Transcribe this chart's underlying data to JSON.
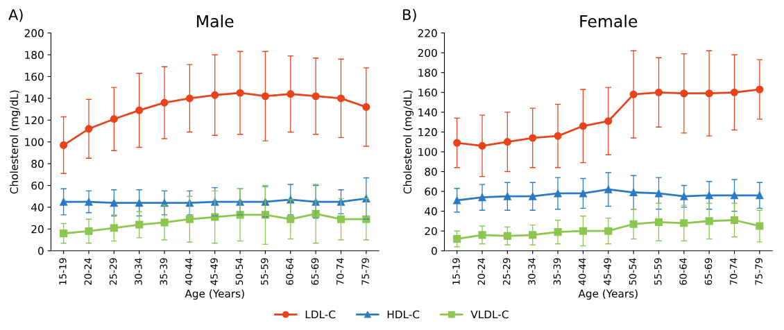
{
  "chart_data": [
    {
      "type": "line",
      "title": "Male",
      "xlabel": "Age (Years)",
      "ylabel": "Cholesterol (mg/dL)",
      "annotations": [
        "A)"
      ],
      "categories": [
        "15-19",
        "20-24",
        "25-29",
        "30-34",
        "35-39",
        "40-44",
        "45-49",
        "50-54",
        "55-59",
        "60-64",
        "65-69",
        "70-74",
        "75-79"
      ],
      "ylim": [
        0,
        200
      ],
      "yticks": [
        0,
        20,
        40,
        60,
        80,
        100,
        120,
        140,
        160,
        180,
        200
      ],
      "grid": false,
      "legend": "bottom",
      "series": [
        {
          "name": "LDL-C",
          "color": "#e8431b",
          "marker": "circle",
          "values": [
            97,
            112,
            121,
            129,
            136,
            140,
            143,
            145,
            142,
            144,
            142,
            140,
            132
          ],
          "errors": [
            26,
            27,
            29,
            34,
            33,
            31,
            37,
            38,
            41,
            35,
            35,
            36,
            36
          ]
        },
        {
          "name": "HDL-C",
          "color": "#2a7bc4",
          "marker": "triangle",
          "values": [
            45,
            45,
            44,
            44,
            44,
            44,
            45,
            45,
            45,
            47,
            45,
            45,
            48
          ],
          "errors": [
            12,
            10,
            12,
            12,
            11,
            11,
            13,
            12,
            14,
            14,
            15,
            11,
            19
          ]
        },
        {
          "name": "VLDL-C",
          "color": "#8cc64f",
          "marker": "square",
          "values": [
            16,
            18,
            21,
            24,
            26,
            29,
            31,
            33,
            33,
            29,
            34,
            29,
            29
          ],
          "errors": [
            9,
            11,
            12,
            12,
            16,
            21,
            24,
            24,
            27,
            18,
            27,
            19,
            19
          ]
        }
      ]
    },
    {
      "type": "line",
      "title": "Female",
      "xlabel": "Age (Years)",
      "ylabel": "Cholesterol (mg/dL)",
      "annotations": [
        "B)"
      ],
      "categories": [
        "15-19",
        "20-24",
        "25-29",
        "30-34",
        "35-39",
        "40-44",
        "45-49",
        "50-54",
        "55-59",
        "60-64",
        "65-69",
        "70-74",
        "75-79"
      ],
      "ylim": [
        0,
        220
      ],
      "yticks": [
        0,
        20,
        40,
        60,
        80,
        100,
        120,
        140,
        160,
        180,
        200,
        220
      ],
      "grid": false,
      "legend": "bottom",
      "series": [
        {
          "name": "LDL-C",
          "color": "#e8431b",
          "marker": "circle",
          "values": [
            109,
            106,
            110,
            114,
            116,
            126,
            131,
            158,
            160,
            159,
            159,
            160,
            163
          ],
          "errors": [
            25,
            31,
            30,
            30,
            32,
            37,
            34,
            44,
            35,
            40,
            43,
            38,
            30
          ]
        },
        {
          "name": "HDL-C",
          "color": "#2a7bc4",
          "marker": "triangle",
          "values": [
            51,
            54,
            55,
            55,
            58,
            58,
            62,
            59,
            58,
            55,
            56,
            56,
            56
          ],
          "errors": [
            12,
            13,
            14,
            14,
            16,
            15,
            17,
            17,
            16,
            11,
            14,
            16,
            13
          ]
        },
        {
          "name": "VLDL-C",
          "color": "#8cc64f",
          "marker": "square",
          "values": [
            12,
            16,
            15,
            16,
            19,
            20,
            20,
            27,
            29,
            28,
            30,
            31,
            25
          ],
          "errors": [
            8,
            9,
            9,
            10,
            12,
            15,
            13,
            15,
            19,
            18,
            18,
            17,
            16
          ]
        }
      ]
    }
  ]
}
